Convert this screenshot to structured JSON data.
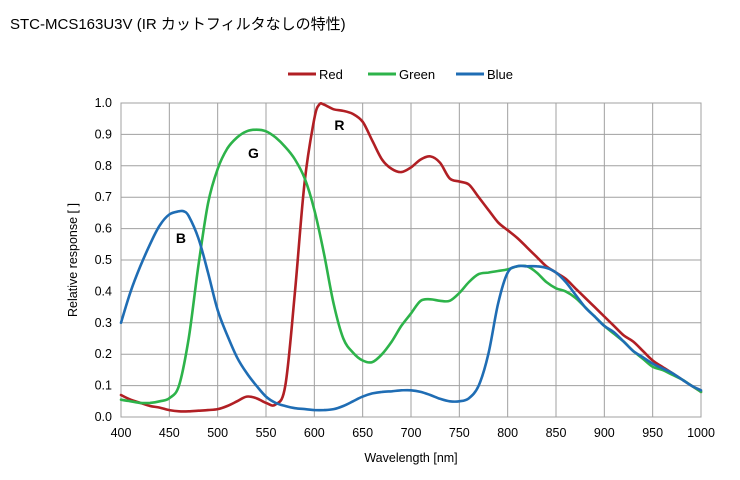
{
  "title": "STC-MCS163U3V (IR カットフィルタなしの特性)",
  "chart_data": {
    "type": "line",
    "title": "STC-MCS163U3V (IR カットフィルタなしの特性)",
    "xlabel": "Wavelength [nm]",
    "ylabel": "Relative response [ ]",
    "xlim": [
      400,
      1000
    ],
    "ylim": [
      0,
      1.0
    ],
    "xticks": [
      "400",
      "450",
      "500",
      "550",
      "600",
      "650",
      "700",
      "750",
      "800",
      "850",
      "900",
      "950",
      "1000"
    ],
    "yticks": [
      "0.0",
      "0.1",
      "0.2",
      "0.3",
      "0.4",
      "0.5",
      "0.6",
      "0.7",
      "0.8",
      "0.9",
      "1.0"
    ],
    "grid": true,
    "legend": "top-center",
    "series": [
      {
        "name": "Red",
        "color": "#b11f24",
        "x": [
          400,
          410,
          420,
          430,
          440,
          450,
          460,
          470,
          480,
          490,
          500,
          510,
          520,
          530,
          540,
          550,
          560,
          570,
          580,
          590,
          600,
          605,
          610,
          620,
          630,
          640,
          650,
          660,
          670,
          680,
          690,
          700,
          710,
          720,
          730,
          740,
          750,
          760,
          770,
          780,
          790,
          800,
          810,
          820,
          830,
          840,
          850,
          860,
          870,
          880,
          890,
          900,
          910,
          920,
          930,
          940,
          950,
          960,
          970,
          980,
          990,
          1000
        ],
        "values": [
          0.07,
          0.055,
          0.045,
          0.035,
          0.03,
          0.022,
          0.018,
          0.018,
          0.02,
          0.022,
          0.025,
          0.035,
          0.05,
          0.065,
          0.06,
          0.045,
          0.04,
          0.1,
          0.4,
          0.75,
          0.95,
          0.995,
          0.995,
          0.98,
          0.975,
          0.965,
          0.94,
          0.88,
          0.82,
          0.79,
          0.78,
          0.795,
          0.82,
          0.83,
          0.81,
          0.76,
          0.75,
          0.74,
          0.7,
          0.66,
          0.62,
          0.595,
          0.57,
          0.54,
          0.51,
          0.48,
          0.46,
          0.44,
          0.41,
          0.38,
          0.35,
          0.32,
          0.29,
          0.26,
          0.24,
          0.21,
          0.18,
          0.16,
          0.14,
          0.12,
          0.1,
          0.08
        ]
      },
      {
        "name": "Green",
        "color": "#2db34a",
        "x": [
          400,
          410,
          420,
          430,
          440,
          450,
          460,
          470,
          480,
          490,
          500,
          510,
          520,
          530,
          540,
          550,
          560,
          570,
          580,
          590,
          600,
          610,
          620,
          630,
          640,
          650,
          660,
          670,
          680,
          690,
          700,
          710,
          720,
          730,
          740,
          750,
          760,
          770,
          780,
          790,
          800,
          810,
          820,
          830,
          840,
          850,
          860,
          870,
          880,
          890,
          900,
          910,
          920,
          930,
          940,
          950,
          960,
          970,
          980,
          990,
          1000
        ],
        "values": [
          0.055,
          0.05,
          0.045,
          0.045,
          0.05,
          0.06,
          0.1,
          0.25,
          0.48,
          0.68,
          0.79,
          0.855,
          0.89,
          0.91,
          0.915,
          0.91,
          0.89,
          0.86,
          0.82,
          0.76,
          0.66,
          0.52,
          0.36,
          0.25,
          0.205,
          0.18,
          0.175,
          0.2,
          0.24,
          0.29,
          0.33,
          0.37,
          0.375,
          0.37,
          0.37,
          0.395,
          0.43,
          0.455,
          0.46,
          0.465,
          0.47,
          0.48,
          0.48,
          0.46,
          0.43,
          0.41,
          0.4,
          0.38,
          0.35,
          0.32,
          0.29,
          0.265,
          0.24,
          0.21,
          0.185,
          0.16,
          0.15,
          0.135,
          0.12,
          0.1,
          0.08
        ]
      },
      {
        "name": "Blue",
        "color": "#1f6db4",
        "x": [
          400,
          410,
          420,
          430,
          440,
          450,
          460,
          465,
          470,
          480,
          490,
          500,
          510,
          520,
          530,
          540,
          550,
          560,
          570,
          580,
          590,
          600,
          610,
          620,
          630,
          640,
          650,
          660,
          670,
          680,
          690,
          700,
          710,
          720,
          730,
          740,
          750,
          760,
          770,
          780,
          790,
          800,
          810,
          820,
          830,
          840,
          850,
          860,
          870,
          880,
          890,
          900,
          910,
          920,
          930,
          940,
          950,
          960,
          970,
          980,
          990,
          1000
        ],
        "values": [
          0.3,
          0.4,
          0.48,
          0.55,
          0.61,
          0.645,
          0.655,
          0.655,
          0.64,
          0.57,
          0.46,
          0.34,
          0.26,
          0.19,
          0.14,
          0.1,
          0.065,
          0.045,
          0.035,
          0.028,
          0.025,
          0.022,
          0.022,
          0.025,
          0.035,
          0.05,
          0.065,
          0.075,
          0.08,
          0.082,
          0.085,
          0.085,
          0.08,
          0.07,
          0.058,
          0.05,
          0.05,
          0.06,
          0.1,
          0.2,
          0.36,
          0.46,
          0.48,
          0.48,
          0.48,
          0.475,
          0.46,
          0.43,
          0.39,
          0.35,
          0.32,
          0.29,
          0.27,
          0.24,
          0.21,
          0.19,
          0.17,
          0.155,
          0.14,
          0.12,
          0.1,
          0.085
        ]
      }
    ],
    "annotations": [
      {
        "text": "R",
        "x": 626,
        "y": 0.93
      },
      {
        "text": "G",
        "x": 537,
        "y": 0.84
      },
      {
        "text": "B",
        "x": 462,
        "y": 0.57
      }
    ]
  }
}
